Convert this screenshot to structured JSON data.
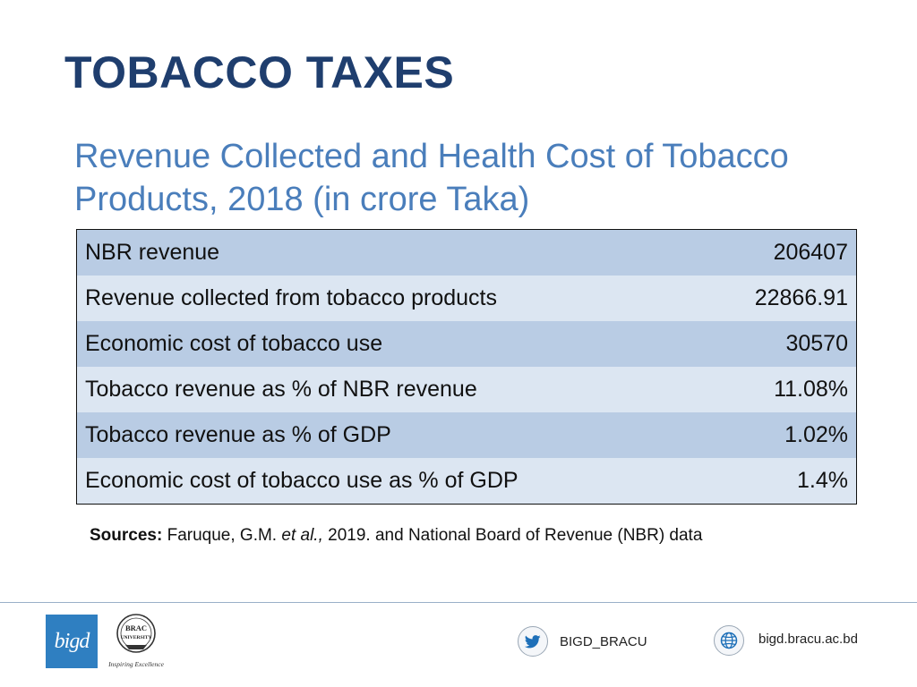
{
  "slide": {
    "title": "TOBACCO TAXES",
    "subtitle": "Revenue Collected and Health Cost of Tobacco Products, 2018 (in crore Taka)"
  },
  "table": {
    "rows": [
      {
        "label": "NBR revenue",
        "value": "206407"
      },
      {
        "label": "Revenue collected from tobacco products",
        "value": "22866.91"
      },
      {
        "label": "Economic cost of tobacco use",
        "value": "30570"
      },
      {
        "label": "Tobacco revenue as % of NBR revenue",
        "value": "11.08%"
      },
      {
        "label": "Tobacco revenue as % of GDP",
        "value": "1.02%"
      },
      {
        "label": "Economic cost of tobacco use as % of GDP",
        "value": "1.4%"
      }
    ]
  },
  "sources": {
    "label": "Sources:",
    "author": "Faruque, G.M.",
    "etal": "et al.,",
    "rest": "2019. and National Board of Revenue (NBR) data"
  },
  "footer": {
    "bigd_logo_text": "bigd",
    "brac_logo_line1": "BRAC",
    "brac_logo_line2": "UNIVERSITY",
    "brac_tagline": "Inspiring Excellence",
    "twitter_handle": "BIGD_BRACU",
    "website": "bigd.bracu.ac.bd",
    "icons": {
      "twitter": "twitter-icon",
      "web": "globe-icon"
    }
  },
  "colors": {
    "title": "#1f3e6e",
    "subtitle": "#4a7ebb",
    "row_dark": "#b9cce4",
    "row_light": "#dce6f2",
    "logo_blue": "#2f7fc1",
    "twitter_blue": "#1d6fb8"
  }
}
